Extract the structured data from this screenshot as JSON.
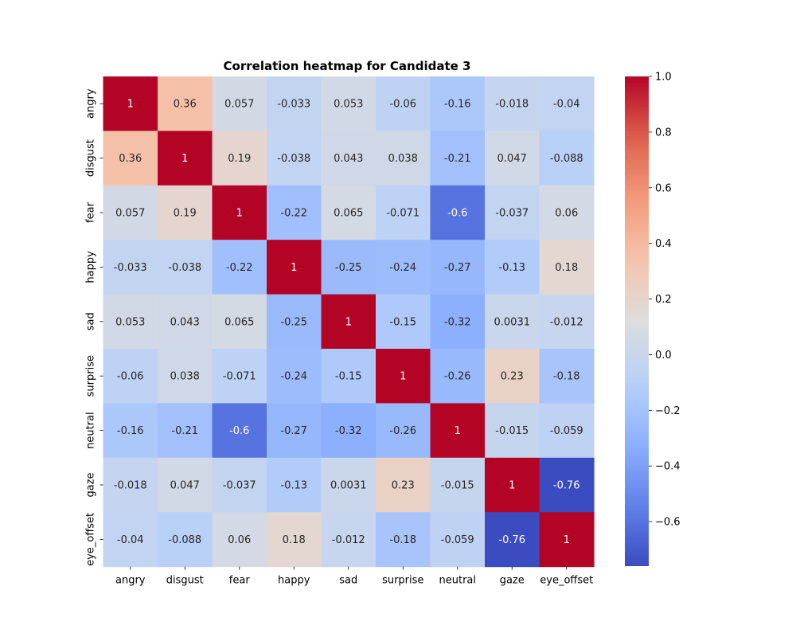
{
  "chart_data": {
    "type": "heatmap",
    "title": "Correlation heatmap for Candidate 3",
    "xlabel": "",
    "ylabel": "",
    "labels": [
      "angry",
      "disgust",
      "fear",
      "happy",
      "sad",
      "surprise",
      "neutral",
      "gaze",
      "eye_offset"
    ],
    "values": [
      [
        1,
        0.36,
        0.057,
        -0.033,
        0.053,
        -0.06,
        -0.16,
        -0.018,
        -0.04
      ],
      [
        0.36,
        1,
        0.19,
        -0.038,
        0.043,
        0.038,
        -0.21,
        0.047,
        -0.088
      ],
      [
        0.057,
        0.19,
        1,
        -0.22,
        0.065,
        -0.071,
        -0.6,
        -0.037,
        0.06
      ],
      [
        -0.033,
        -0.038,
        -0.22,
        1,
        -0.25,
        -0.24,
        -0.27,
        -0.13,
        0.18
      ],
      [
        0.053,
        0.043,
        0.065,
        -0.25,
        1,
        -0.15,
        -0.32,
        0.0031,
        -0.012
      ],
      [
        -0.06,
        0.038,
        -0.071,
        -0.24,
        -0.15,
        1,
        -0.26,
        0.23,
        -0.18
      ],
      [
        -0.16,
        -0.21,
        -0.6,
        -0.27,
        -0.32,
        -0.26,
        1,
        -0.015,
        -0.059
      ],
      [
        -0.018,
        0.047,
        -0.037,
        -0.13,
        0.0031,
        0.23,
        -0.015,
        1,
        -0.76
      ],
      [
        -0.04,
        -0.088,
        0.06,
        0.18,
        -0.012,
        -0.18,
        -0.059,
        -0.76,
        1
      ]
    ],
    "annotations": [
      [
        "1",
        "0.36",
        "0.057",
        "-0.033",
        "0.053",
        "-0.06",
        "-0.16",
        "-0.018",
        "-0.04"
      ],
      [
        "0.36",
        "1",
        "0.19",
        "-0.038",
        "0.043",
        "0.038",
        "-0.21",
        "0.047",
        "-0.088"
      ],
      [
        "0.057",
        "0.19",
        "1",
        "-0.22",
        "0.065",
        "-0.071",
        "-0.6",
        "-0.037",
        "0.06"
      ],
      [
        "-0.033",
        "-0.038",
        "-0.22",
        "1",
        "-0.25",
        "-0.24",
        "-0.27",
        "-0.13",
        "0.18"
      ],
      [
        "0.053",
        "0.043",
        "0.065",
        "-0.25",
        "1",
        "-0.15",
        "-0.32",
        "0.0031",
        "-0.012"
      ],
      [
        "-0.06",
        "0.038",
        "-0.071",
        "-0.24",
        "-0.15",
        "1",
        "-0.26",
        "0.23",
        "-0.18"
      ],
      [
        "-0.16",
        "-0.21",
        "-0.6",
        "-0.27",
        "-0.32",
        "-0.26",
        "1",
        "-0.015",
        "-0.059"
      ],
      [
        "-0.018",
        "0.047",
        "-0.037",
        "-0.13",
        "0.0031",
        "0.23",
        "-0.015",
        "1",
        "-0.76"
      ],
      [
        "-0.04",
        "-0.088",
        "0.06",
        "0.18",
        "-0.012",
        "-0.18",
        "-0.059",
        "-0.76",
        "1"
      ]
    ],
    "colormap": "coolwarm",
    "colorbar": {
      "range": [
        -0.76,
        1.0
      ],
      "ticks": [
        1.0,
        0.8,
        0.6,
        0.4,
        0.2,
        0.0,
        -0.2,
        -0.4,
        -0.6
      ],
      "tick_labels": [
        "1.0",
        "0.8",
        "0.6",
        "0.4",
        "0.2",
        "0.0",
        "−0.2",
        "−0.4",
        "−0.6"
      ]
    },
    "grid": false,
    "legend": "colorbar-right"
  }
}
